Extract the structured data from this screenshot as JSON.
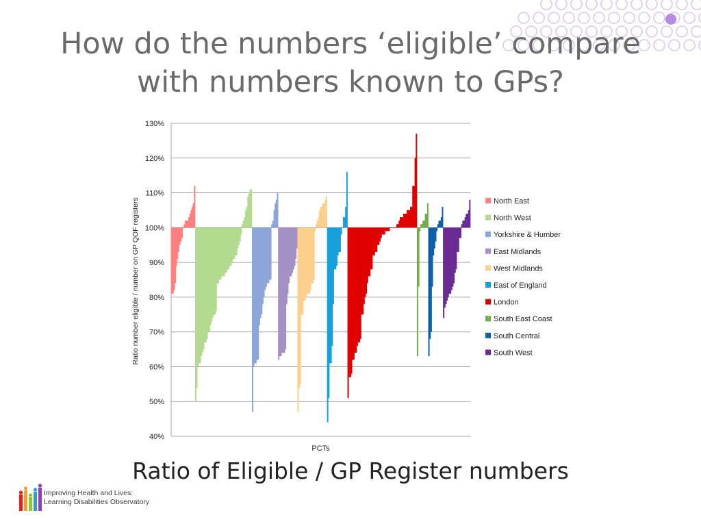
{
  "slide": {
    "title_line1": "How do the numbers ‘eligible’ compare",
    "title_line2": "with numbers known to GPs?",
    "subtitle": "Ratio of Eligible / GP Register numbers"
  },
  "logo": {
    "line1": "Improving Health and Lives:",
    "line2": "Learning Disabilities Observatory"
  },
  "colors": {
    "title": "#6a6a6a",
    "decor_circles": "#d9c8ee",
    "decor_accent": "#b78be0"
  },
  "chart_data": {
    "type": "bar",
    "xlabel": "PCTs",
    "ylabel": "Ratio number eligible / number on GP QOF registers",
    "ylim": [
      40,
      130
    ],
    "baseline": 100,
    "y_ticks": [
      40,
      50,
      60,
      70,
      80,
      90,
      100,
      110,
      120,
      130
    ],
    "y_tick_labels": [
      "40%",
      "50%",
      "60%",
      "70%",
      "80%",
      "90%",
      "100%",
      "110%",
      "120%",
      "130%"
    ],
    "grid": true,
    "legend_position": "right",
    "series": [
      {
        "name": "North East",
        "color": "#ff8080",
        "values": [
          81,
          81,
          82,
          84,
          89,
          91,
          93,
          95,
          96,
          97,
          100,
          101,
          102,
          102,
          102,
          103,
          104,
          105,
          106,
          107,
          112
        ]
      },
      {
        "name": "North West",
        "color": "#b3db8f",
        "values": [
          50,
          54,
          60,
          61,
          61,
          63,
          64,
          65,
          67,
          67,
          68,
          70,
          70,
          72,
          73,
          74,
          75,
          75,
          76,
          84,
          84,
          85,
          85,
          86,
          86,
          86,
          87,
          87,
          88,
          88,
          89,
          89,
          90,
          91,
          91,
          92,
          92,
          94,
          95,
          96,
          98,
          101,
          102,
          103,
          105,
          106,
          109,
          110,
          111,
          111
        ]
      },
      {
        "name": "Yorkshire & Humber",
        "color": "#8ca6d8",
        "values": [
          47,
          60,
          61,
          61,
          62,
          62,
          72,
          74,
          75,
          78,
          80,
          82,
          83,
          84,
          84,
          85,
          85,
          101,
          102,
          105,
          107,
          108,
          110
        ]
      },
      {
        "name": "East Midlands",
        "color": "#a490c4",
        "values": [
          62,
          63,
          63,
          64,
          64,
          64,
          65,
          78,
          81,
          84,
          86,
          86,
          87,
          88,
          89,
          91,
          94
        ]
      },
      {
        "name": "West Midlands",
        "color": "#fcd08c",
        "values": [
          47,
          54,
          55,
          75,
          75,
          79,
          79,
          80,
          81,
          81,
          81,
          82,
          84,
          84,
          85,
          99,
          101,
          102,
          103,
          105,
          106,
          106,
          107,
          107,
          108,
          109
        ]
      },
      {
        "name": "East of England",
        "color": "#16a0dc",
        "values": [
          44,
          51,
          61,
          61,
          66,
          78,
          88,
          88,
          89,
          92,
          93,
          93,
          98,
          100,
          103,
          103,
          106,
          116
        ]
      },
      {
        "name": "London",
        "color": "#e00000",
        "values": [
          51,
          57,
          57,
          58,
          62,
          62,
          64,
          64,
          66,
          67,
          67,
          68,
          75,
          75,
          78,
          80,
          81,
          84,
          86,
          86,
          88,
          88,
          92,
          92,
          93,
          93,
          95,
          95,
          96,
          97,
          98,
          98,
          98,
          99,
          99,
          99,
          99,
          100,
          100,
          100,
          100,
          100,
          100,
          101,
          101,
          102,
          103,
          103,
          103,
          104,
          104,
          104,
          105,
          105,
          105,
          106,
          106,
          112,
          112,
          120,
          127
        ]
      },
      {
        "name": "South East Coast",
        "color": "#72ae48",
        "values": [
          63,
          83,
          99,
          101,
          101,
          102,
          102,
          104,
          104,
          107
        ]
      },
      {
        "name": "South Central",
        "color": "#1060a8",
        "values": [
          63,
          68,
          70,
          83,
          92,
          94,
          96,
          99,
          101,
          102,
          102,
          103,
          106
        ]
      },
      {
        "name": "South West",
        "color": "#6a2b94",
        "values": [
          74,
          77,
          78,
          79,
          80,
          81,
          81,
          82,
          83,
          84,
          87,
          88,
          93,
          93,
          97,
          97,
          101,
          102,
          102,
          103,
          104,
          104,
          105,
          108
        ]
      }
    ]
  }
}
